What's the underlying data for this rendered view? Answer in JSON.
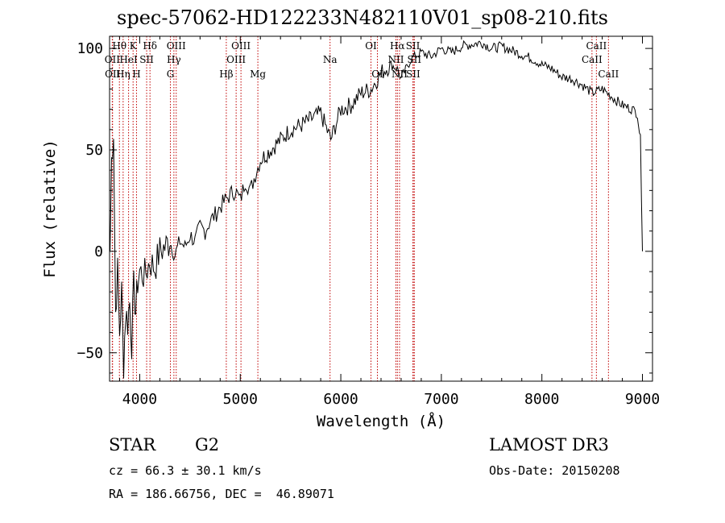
{
  "chart_data": {
    "type": "line",
    "title": "spec-57062-HD122233N482110V01_sp08-210.fits",
    "xlabel": "Wavelength (Å)",
    "ylabel": "Flux (relative)",
    "xlim": [
      3700,
      9100
    ],
    "ylim": [
      -64,
      106
    ],
    "xticks": [
      4000,
      5000,
      6000,
      7000,
      8000,
      9000
    ],
    "xtick_labels": [
      "4000",
      "5000",
      "6000",
      "7000",
      "8000",
      "9000"
    ],
    "yticks": [
      -50,
      0,
      50,
      100
    ],
    "ytick_labels": [
      "−50",
      "0",
      "50",
      "100"
    ],
    "series": [
      {
        "name": "flux",
        "x": [
          3705,
          3720,
          3740,
          3760,
          3780,
          3800,
          3820,
          3840,
          3860,
          3880,
          3900,
          3920,
          3940,
          3960,
          3980,
          4000,
          4050,
          4100,
          4150,
          4200,
          4250,
          4300,
          4350,
          4400,
          4450,
          4500,
          4550,
          4600,
          4650,
          4700,
          4750,
          4800,
          4850,
          4900,
          4950,
          5000,
          5050,
          5100,
          5150,
          5200,
          5300,
          5400,
          5500,
          5600,
          5700,
          5800,
          5900,
          6000,
          6100,
          6200,
          6300,
          6400,
          6500,
          6563,
          6600,
          6700,
          6800,
          6900,
          7000,
          7100,
          7200,
          7300,
          7400,
          7500,
          7600,
          7700,
          7800,
          7900,
          8000,
          8100,
          8200,
          8300,
          8400,
          8500,
          8600,
          8700,
          8800,
          8900,
          8950,
          8980,
          9000
        ],
        "y": [
          0,
          45,
          60,
          -30,
          -10,
          -40,
          -20,
          -55,
          -30,
          -35,
          -25,
          -45,
          -18,
          -30,
          -15,
          -10,
          -12,
          -5,
          -8,
          0,
          2,
          5,
          -2,
          5,
          2,
          8,
          5,
          12,
          10,
          15,
          18,
          22,
          25,
          28,
          30,
          25,
          35,
          30,
          38,
          45,
          50,
          55,
          60,
          62,
          65,
          68,
          55,
          70,
          72,
          78,
          80,
          88,
          92,
          90,
          85,
          95,
          98,
          96,
          100,
          98,
          101,
          102,
          103,
          100,
          101,
          99,
          97,
          95,
          92,
          90,
          86,
          85,
          82,
          78,
          80,
          76,
          72,
          70,
          68,
          55,
          0
        ]
      }
    ],
    "lines": [
      {
        "label": "Hθ",
        "x": 3798,
        "row": 1
      },
      {
        "label": "OII",
        "x": 3727,
        "row": 2
      },
      {
        "label": "OII",
        "x": 3730,
        "row": 3
      },
      {
        "label": "K",
        "x": 3934,
        "row": 1
      },
      {
        "label": "HeI",
        "x": 3889,
        "row": 2
      },
      {
        "label": "Hη",
        "x": 3835,
        "row": 3
      },
      {
        "label": "Hδ",
        "x": 4102,
        "row": 1
      },
      {
        "label": "SII",
        "x": 4069,
        "row": 2
      },
      {
        "label": "H",
        "x": 3968,
        "row": 3
      },
      {
        "label": "OIII",
        "x": 4363,
        "row": 1
      },
      {
        "label": "Hγ",
        "x": 4340,
        "row": 2
      },
      {
        "label": "G",
        "x": 4305,
        "row": 3
      },
      {
        "label": "Hβ",
        "x": 4861,
        "row": 3
      },
      {
        "label": "OIII",
        "x": 5007,
        "row": 1
      },
      {
        "label": "OIII",
        "x": 4959,
        "row": 2
      },
      {
        "label": "Mg",
        "x": 5175,
        "row": 3
      },
      {
        "label": "Na",
        "x": 5893,
        "row": 2
      },
      {
        "label": "OI",
        "x": 6300,
        "row": 1
      },
      {
        "label": "OI",
        "x": 6364,
        "row": 3
      },
      {
        "label": "Hα",
        "x": 6563,
        "row": 1
      },
      {
        "label": "NII",
        "x": 6548,
        "row": 2
      },
      {
        "label": "NII",
        "x": 6584,
        "row": 3
      },
      {
        "label": "SII",
        "x": 6717,
        "row": 1
      },
      {
        "label": "SII",
        "x": 6731,
        "row": 2
      },
      {
        "label": "SII",
        "x": 6720,
        "row": 3
      },
      {
        "label": "CaII",
        "x": 8542,
        "row": 1
      },
      {
        "label": "CaII",
        "x": 8498,
        "row": 2
      },
      {
        "label": "CaII",
        "x": 8662,
        "row": 3
      }
    ]
  },
  "info": {
    "object": "STAR",
    "subclass": "G2",
    "survey": "LAMOST DR3",
    "cz": "cz = 66.3 ± 30.1 km/s",
    "obs_date": "Obs-Date: 20150208",
    "coords": "RA = 186.66756, DEC =  46.89071"
  }
}
